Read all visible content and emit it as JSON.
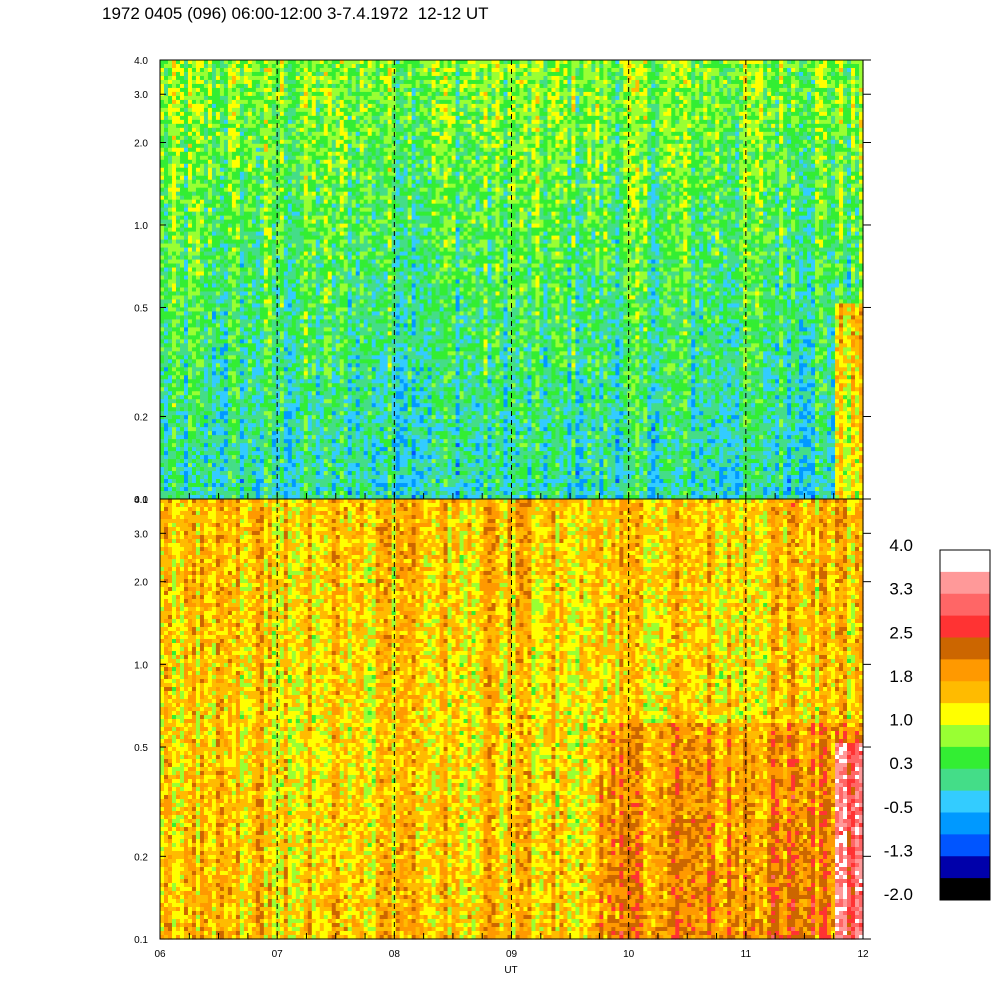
{
  "title": "1972 0405 (096) 06:00-12:00 3-7.4.1972  12-12 UT",
  "chart_data": [
    {
      "type": "heatmap",
      "panel": "top",
      "x_range": [
        "06",
        "12"
      ],
      "y_range": [
        0.1,
        4.0
      ],
      "y_scale": "log",
      "y_ticks": [
        "0.1",
        "0.2",
        "0.5",
        "1.0",
        "2.0",
        "3.0",
        "4.0"
      ],
      "y_tick_values": [
        0.1,
        0.2,
        0.5,
        1.0,
        2.0,
        3.0,
        4.0
      ],
      "dominant_level": 0.3,
      "description_levels": {
        "low": -0.5,
        "mid": 0.3,
        "high": 1.0
      }
    },
    {
      "type": "heatmap",
      "panel": "bottom",
      "x_range": [
        "06",
        "12"
      ],
      "y_range": [
        0.1,
        4.0
      ],
      "y_scale": "log",
      "y_ticks": [
        "0.1",
        "0.2",
        "0.5",
        "1.0",
        "2.0",
        "3.0",
        "4.0"
      ],
      "y_tick_values": [
        0.1,
        0.2,
        0.5,
        1.0,
        2.0,
        3.0,
        4.0
      ],
      "dominant_level": 1.8,
      "description_levels": {
        "low": 0.3,
        "mid": 1.4,
        "high": 2.5
      }
    }
  ],
  "x_axis": {
    "label": "UT",
    "ticks": [
      "06",
      "07",
      "08",
      "09",
      "10",
      "11",
      "12"
    ],
    "tick_values": [
      6,
      7,
      8,
      9,
      10,
      11,
      12
    ],
    "vertical_dashed_lines_at": [
      7,
      8,
      9,
      10,
      11
    ]
  },
  "colorbar": {
    "labels": [
      "4.0",
      "3.3",
      "2.5",
      "1.8",
      "1.0",
      "0.3",
      "-0.5",
      "-1.3",
      "-2.0"
    ],
    "colors": [
      "#ffffff",
      "#ff9999",
      "#ff6666",
      "#ff3333",
      "#cc6600",
      "#ff9900",
      "#ffbb00",
      "#ffff00",
      "#99ff33",
      "#33ee33",
      "#44dd88",
      "#33ccff",
      "#0099ff",
      "#0055ff",
      "#0000aa",
      "#000000"
    ]
  }
}
